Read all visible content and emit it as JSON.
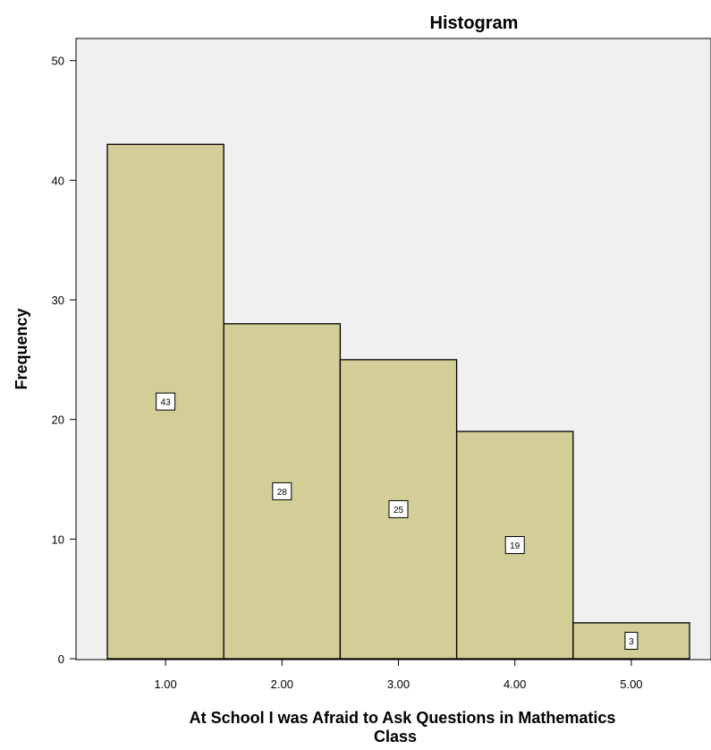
{
  "chart_data": {
    "type": "bar",
    "title": "Histogram",
    "xlabel": "At School I was Afraid to Ask Questions in Mathematics Class",
    "xlabel_lines": [
      "At School I was Afraid to Ask Questions in Mathematics",
      "Class"
    ],
    "ylabel": "Frequency",
    "categories": [
      "1.00",
      "2.00",
      "3.00",
      "4.00",
      "5.00"
    ],
    "x": [
      1.0,
      2.0,
      3.0,
      4.0,
      5.0
    ],
    "bin_width": 1.0,
    "values": [
      43,
      28,
      25,
      19,
      3
    ],
    "ylim": [
      0,
      52
    ],
    "yticks": [
      0,
      10,
      20,
      30,
      40,
      50
    ],
    "xlim": [
      0.5,
      5.5
    ],
    "grid": false,
    "data_labels": true,
    "colors": {
      "plot_background": "#f0f0f0",
      "bar_fill": "#d3ce97",
      "bar_stroke": "#000000"
    }
  }
}
